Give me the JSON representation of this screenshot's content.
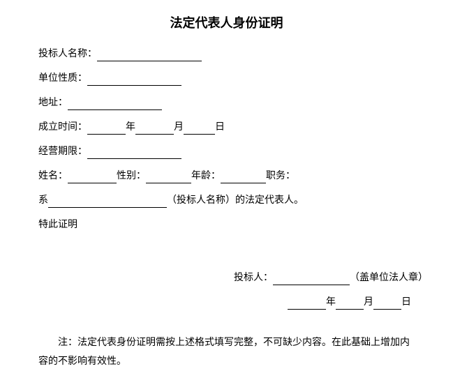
{
  "title": "法定代表人身份证明",
  "labels": {
    "bidder_name": "投标人名称：",
    "unit_nature": "单位性质：",
    "address": "地址：",
    "establish_time": "成立时间：",
    "year": "年",
    "month": "月",
    "day": "日",
    "business_period": "经营期限：",
    "name": "姓名：",
    "gender": "性别：",
    "age": "年龄：",
    "position": "职务：",
    "xi": "系",
    "legal_rep_suffix": "（投标人名称）的法定代表人。",
    "hereby_certify": "特此证明",
    "bidder": "投标人：",
    "seal_note": "（盖单位法人章）"
  },
  "note": "注：法定代表身份证明需按上述格式填写完整，不可缺少内容。在此基础上增加内容的不影响有效性。",
  "colors": {
    "text": "#000000",
    "background": "#ffffff"
  },
  "fonts": {
    "body_size": 14,
    "title_size": 18
  }
}
